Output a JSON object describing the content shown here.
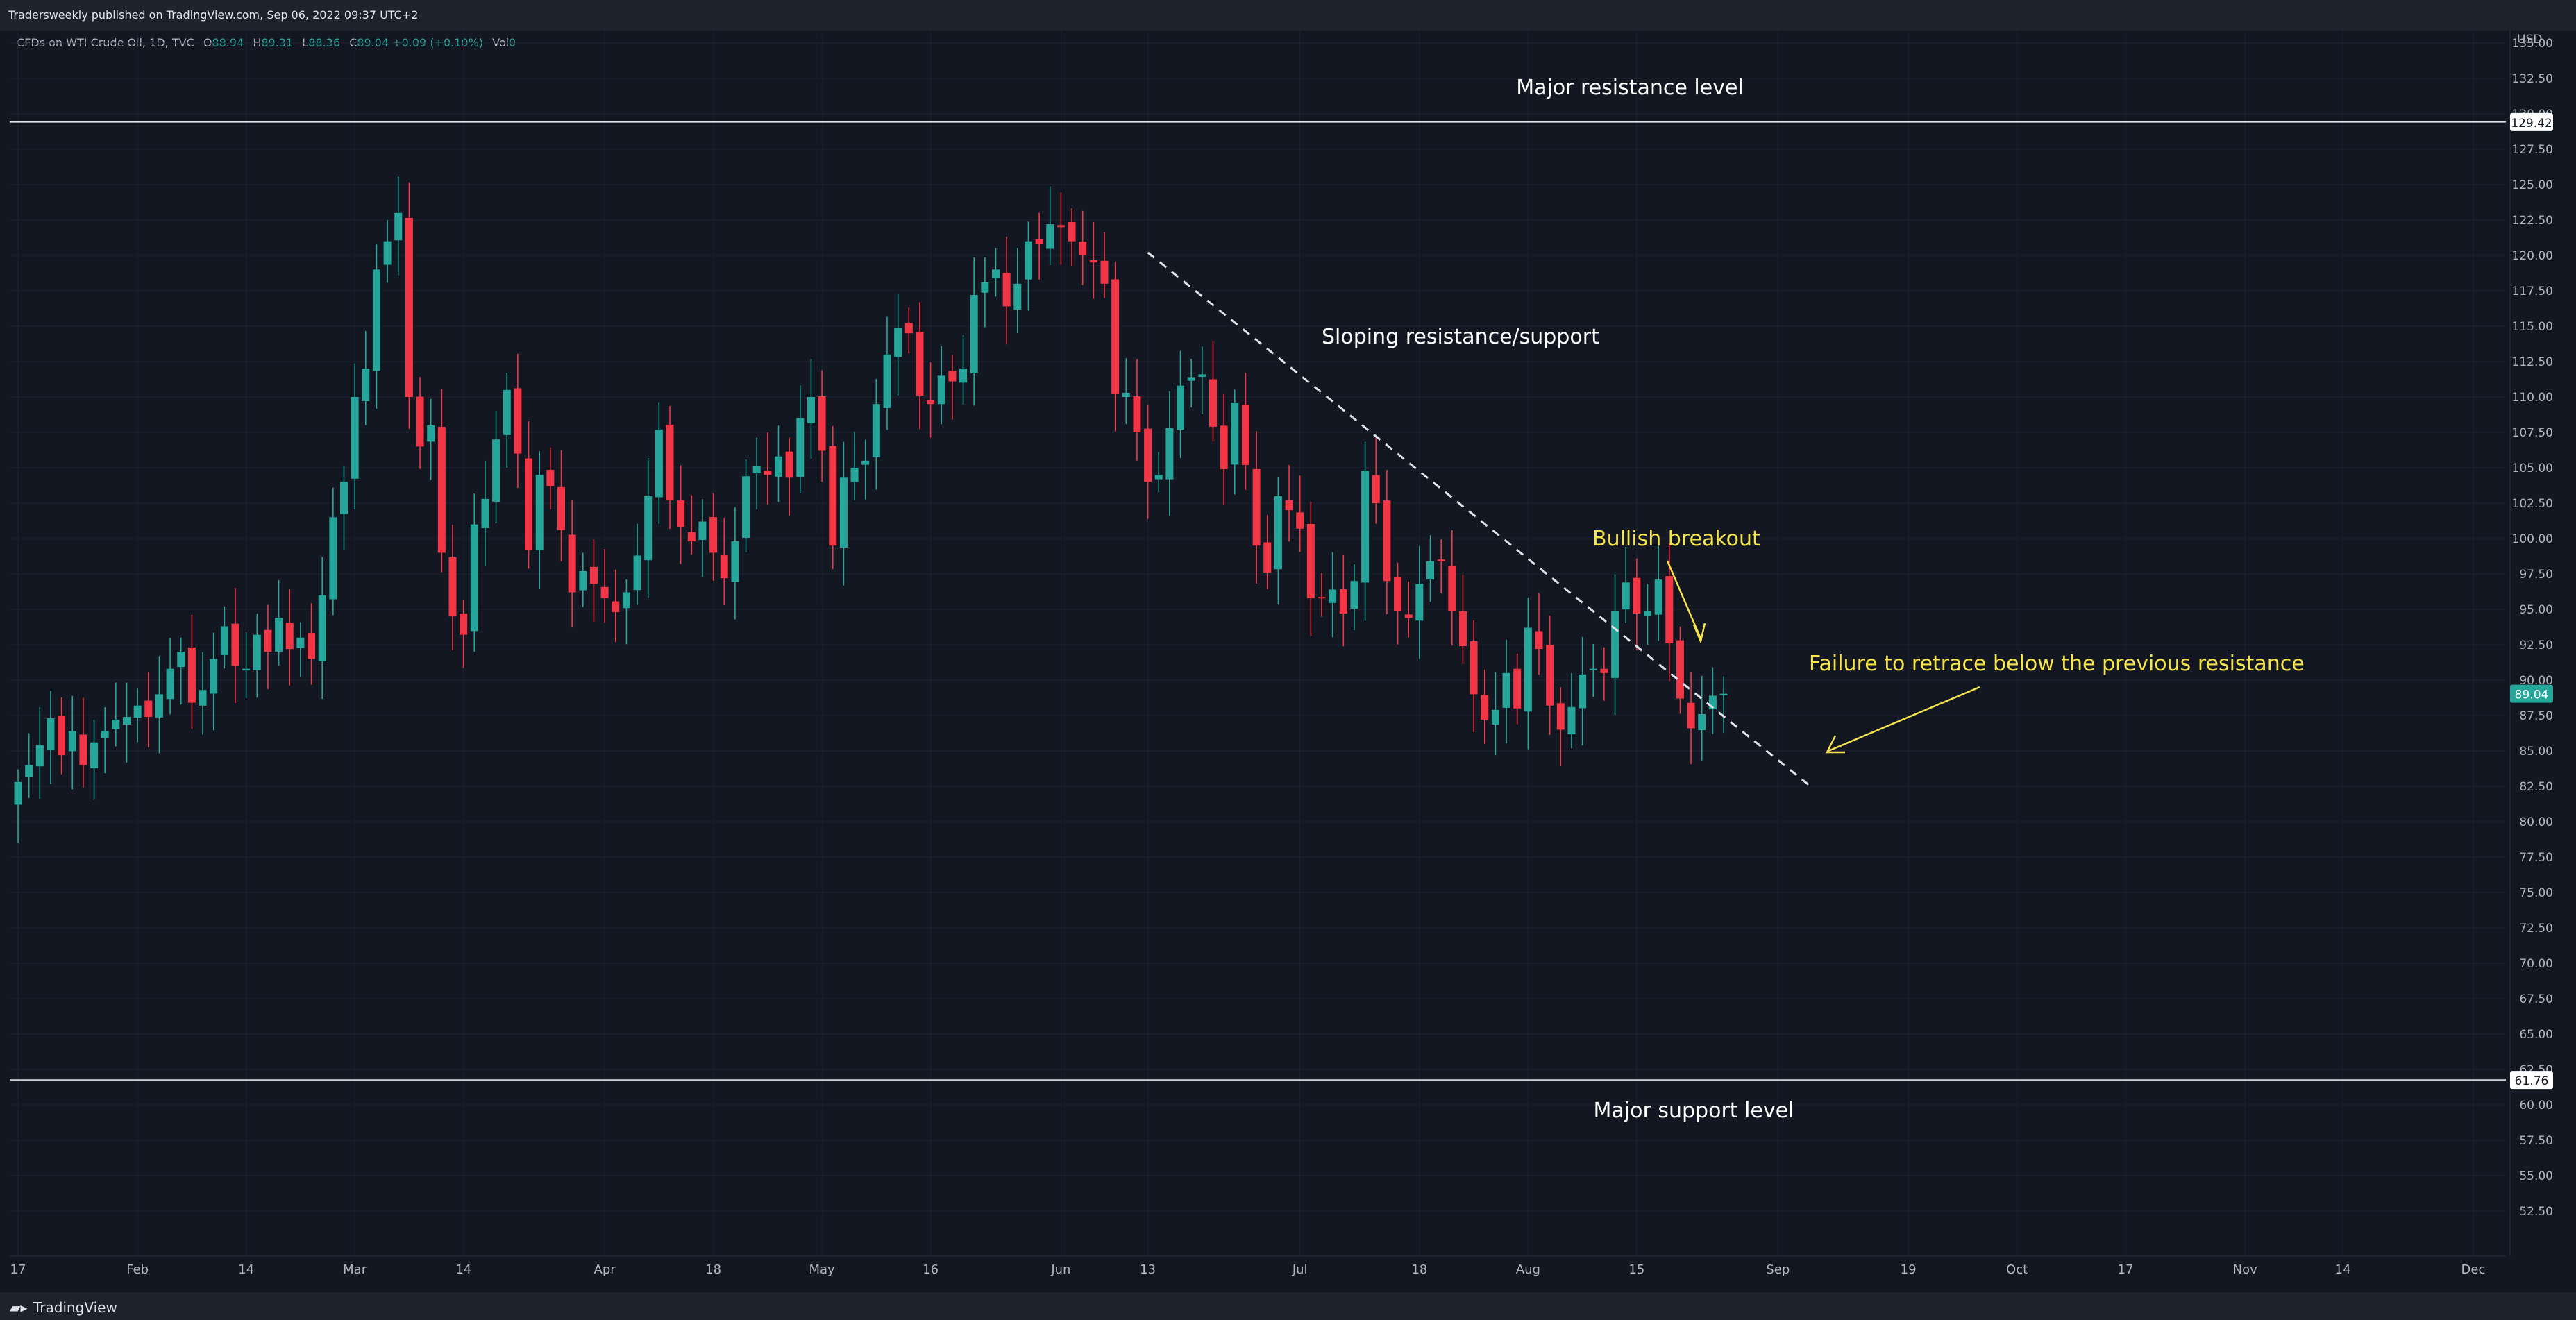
{
  "header": {
    "published": "Tradersweekly published on TradingView.com, Sep 06, 2022 09:37 UTC+2"
  },
  "legend": {
    "symbol": "CFDs on WTI Crude Oil, 1D, TVC",
    "o_label": "O",
    "o": "88.94",
    "h_label": "H",
    "h": "89.31",
    "l_label": "L",
    "l": "88.36",
    "c_label": "C",
    "c": "89.04",
    "change": "+0.09 (+0.10%)",
    "vol_label": "Vol",
    "vol": "0"
  },
  "footer": {
    "brand": "TradingView",
    "logo_icon": "tradingview-logo-icon"
  },
  "colors": {
    "background": "#131722",
    "up": "#26a69a",
    "down": "#f23645",
    "annotation_yellow": "#f5e44a",
    "text": "#d1d4dc"
  },
  "chart_data": {
    "type": "candlestick",
    "title": "",
    "currency": "USD",
    "ylim": [
      50,
      137
    ],
    "yticks": [
      52.5,
      55,
      57.5,
      60,
      62.5,
      65,
      67.5,
      70,
      72.5,
      75,
      77.5,
      80,
      82.5,
      85,
      87.5,
      90,
      92.5,
      95,
      97.5,
      100,
      102.5,
      105,
      107.5,
      110,
      112.5,
      115,
      117.5,
      120,
      122.5,
      125,
      127.5,
      130,
      132.5,
      135
    ],
    "xticks": [
      {
        "label": "17",
        "index": 0
      },
      {
        "label": "Feb",
        "index": 11
      },
      {
        "label": "14",
        "index": 21
      },
      {
        "label": "Mar",
        "index": 31
      },
      {
        "label": "14",
        "index": 41
      },
      {
        "label": "Apr",
        "index": 54
      },
      {
        "label": "18",
        "index": 64
      },
      {
        "label": "May",
        "index": 74
      },
      {
        "label": "16",
        "index": 84
      },
      {
        "label": "Jun",
        "index": 96
      },
      {
        "label": "13",
        "index": 104
      },
      {
        "label": "Jul",
        "index": 118
      },
      {
        "label": "18",
        "index": 129
      },
      {
        "label": "Aug",
        "index": 139
      },
      {
        "label": "15",
        "index": 149
      },
      {
        "label": "Sep",
        "index": 162
      },
      {
        "label": "19",
        "index": 174
      },
      {
        "label": "Oct",
        "index": 184
      },
      {
        "label": "17",
        "index": 194
      },
      {
        "label": "Nov",
        "index": 205
      },
      {
        "label": "14",
        "index": 214
      },
      {
        "label": "Dec",
        "index": 226
      }
    ],
    "x_slots": 228,
    "horizontal_levels": [
      {
        "value": 129.42,
        "label": "Major resistance level",
        "price_tag": "129.42"
      },
      {
        "value": 61.76,
        "label": "Major support level",
        "price_tag": "61.76"
      }
    ],
    "last_price": "89.04",
    "trendline": {
      "from": {
        "index": 104,
        "value": 120.2
      },
      "to": {
        "index": 165,
        "value": 82.5
      },
      "label": "Sloping resistance/support"
    },
    "annotations": [
      {
        "text": "Bullish breakout",
        "color": "yellow"
      },
      {
        "text": "Failure to retrace below the previous resistance",
        "color": "yellow"
      }
    ],
    "closes": [
      82.8,
      84,
      85.4,
      87.3,
      84.7,
      86.4,
      84,
      85.6,
      86.4,
      87.2,
      87.4,
      88.2,
      87.4,
      89,
      90.8,
      92,
      88.4,
      89.3,
      91.5,
      93.8,
      91,
      90.8,
      93.2,
      92,
      94.4,
      92.2,
      93,
      91.5,
      96,
      101.5,
      104,
      110,
      112,
      119,
      121,
      123,
      110,
      106.5,
      108,
      99,
      94.5,
      93.2,
      101,
      102.8,
      107,
      110.5,
      106,
      99.2,
      104.5,
      103.7,
      100.6,
      96.2,
      97.7,
      96.8,
      95.8,
      94.8,
      96.2,
      98.8,
      103,
      107.7,
      102.7,
      100.8,
      99.8,
      101.2,
      99,
      97.2,
      99.8,
      104.4,
      105.1,
      104.5,
      105.8,
      104.3,
      108.5,
      110,
      106.2,
      99.5,
      104.3,
      105,
      105.5,
      109.5,
      113,
      114.9,
      114.5,
      110.1,
      109.5,
      111.5,
      111.1,
      112,
      117.2,
      118.1,
      119,
      116.4,
      118,
      121,
      120.8,
      122.2,
      122,
      121,
      120,
      119.5,
      118,
      110.2,
      110.3,
      107.5,
      104,
      104.5,
      107.8,
      110.8,
      111.4,
      111.6,
      107.9,
      104.9,
      109.6,
      105.2,
      99.5,
      97.6,
      103,
      102,
      100.7,
      95.8,
      95.8,
      96.4,
      94.7,
      97,
      104.8,
      102.5,
      97,
      94.9,
      94.4,
      96.8,
      98.4,
      98.4,
      94.9,
      92.4,
      89,
      87.2,
      87.9,
      90.5,
      88,
      93.7,
      92.2,
      88.2,
      86.5,
      88.1,
      90.4,
      90.8,
      90.5,
      94.9,
      96.9,
      94.7,
      94.9,
      97.1,
      92.6,
      88.7,
      86.6,
      87.6,
      88.9,
      89.04
    ]
  }
}
